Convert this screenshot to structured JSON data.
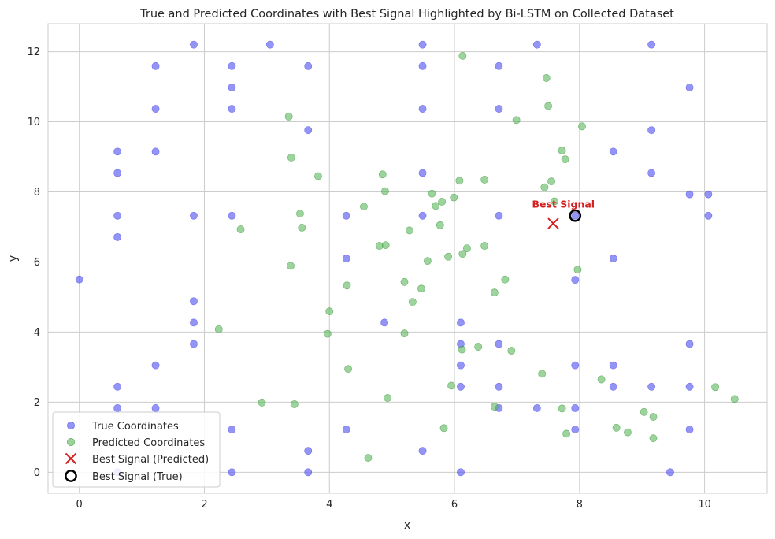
{
  "chart_data": {
    "type": "scatter",
    "title": "True and Predicted Coordinates with Best Signal Highlighted by Bi-LSTM on Collected Dataset",
    "xlabel": "x",
    "ylabel": "y",
    "xlim": [
      -0.5,
      11.0
    ],
    "ylim": [
      -0.6,
      12.8
    ],
    "xticks": [
      0,
      2,
      4,
      6,
      8,
      10
    ],
    "yticks": [
      0,
      2,
      4,
      6,
      8,
      10,
      12
    ],
    "grid": true,
    "legend_position": "lower-left",
    "colors": {
      "true": "#5b5bf0",
      "predicted": "#5cb85c",
      "best_marker": "#d62020",
      "best_true_ring": "#000000"
    },
    "series": [
      {
        "name": "True Coordinates",
        "marker": "circle",
        "points": [
          [
            0.0,
            5.5
          ],
          [
            0.61,
            9.15
          ],
          [
            0.61,
            8.54
          ],
          [
            0.61,
            7.32
          ],
          [
            0.61,
            6.71
          ],
          [
            0.61,
            2.44
          ],
          [
            0.61,
            1.83
          ],
          [
            0.61,
            0.0
          ],
          [
            1.22,
            11.59
          ],
          [
            1.22,
            10.37
          ],
          [
            1.22,
            9.15
          ],
          [
            1.22,
            3.05
          ],
          [
            1.22,
            1.83
          ],
          [
            1.83,
            12.2
          ],
          [
            1.83,
            7.32
          ],
          [
            1.83,
            4.88
          ],
          [
            1.83,
            4.27
          ],
          [
            1.83,
            3.66
          ],
          [
            2.44,
            11.59
          ],
          [
            2.44,
            10.98
          ],
          [
            2.44,
            10.37
          ],
          [
            2.44,
            7.32
          ],
          [
            2.44,
            1.22
          ],
          [
            2.44,
            0.0
          ],
          [
            3.05,
            12.2
          ],
          [
            3.66,
            11.59
          ],
          [
            3.66,
            9.76
          ],
          [
            3.66,
            0.61
          ],
          [
            3.66,
            0.0
          ],
          [
            4.27,
            7.32
          ],
          [
            4.27,
            6.1
          ],
          [
            4.27,
            1.22
          ],
          [
            4.88,
            4.27
          ],
          [
            5.49,
            12.2
          ],
          [
            5.49,
            11.59
          ],
          [
            5.49,
            10.37
          ],
          [
            5.49,
            8.54
          ],
          [
            5.49,
            7.32
          ],
          [
            5.49,
            0.61
          ],
          [
            6.1,
            4.27
          ],
          [
            6.1,
            3.66
          ],
          [
            6.1,
            3.05
          ],
          [
            6.1,
            2.44
          ],
          [
            6.1,
            0.0
          ],
          [
            6.71,
            11.59
          ],
          [
            6.71,
            10.37
          ],
          [
            6.71,
            7.32
          ],
          [
            6.71,
            3.66
          ],
          [
            6.71,
            2.44
          ],
          [
            6.71,
            1.83
          ],
          [
            7.32,
            12.2
          ],
          [
            7.32,
            1.83
          ],
          [
            7.93,
            7.32
          ],
          [
            7.93,
            5.49
          ],
          [
            7.93,
            3.05
          ],
          [
            7.93,
            1.83
          ],
          [
            7.93,
            1.22
          ],
          [
            8.54,
            9.15
          ],
          [
            8.54,
            6.1
          ],
          [
            8.54,
            3.05
          ],
          [
            8.54,
            2.44
          ],
          [
            9.15,
            12.2
          ],
          [
            9.15,
            9.76
          ],
          [
            9.15,
            8.54
          ],
          [
            9.15,
            2.44
          ],
          [
            9.45,
            0.0
          ],
          [
            9.76,
            10.98
          ],
          [
            9.76,
            7.93
          ],
          [
            9.76,
            3.66
          ],
          [
            9.76,
            2.44
          ],
          [
            9.76,
            1.22
          ],
          [
            10.06,
            7.93
          ],
          [
            10.06,
            7.32
          ]
        ]
      },
      {
        "name": "Predicted Coordinates",
        "marker": "circle",
        "points": [
          [
            6.13,
            11.88
          ],
          [
            7.47,
            11.25
          ],
          [
            7.5,
            10.45
          ],
          [
            6.99,
            10.05
          ],
          [
            8.04,
            9.87
          ],
          [
            3.35,
            10.15
          ],
          [
            3.39,
            8.98
          ],
          [
            3.82,
            8.45
          ],
          [
            4.85,
            8.5
          ],
          [
            4.89,
            8.02
          ],
          [
            7.72,
            9.18
          ],
          [
            7.77,
            8.93
          ],
          [
            7.55,
            8.3
          ],
          [
            7.44,
            8.13
          ],
          [
            7.6,
            7.73
          ],
          [
            6.48,
            8.35
          ],
          [
            6.08,
            8.32
          ],
          [
            5.99,
            7.84
          ],
          [
            5.8,
            7.72
          ],
          [
            5.64,
            7.95
          ],
          [
            5.7,
            7.6
          ],
          [
            4.55,
            7.58
          ],
          [
            3.53,
            7.38
          ],
          [
            3.56,
            6.98
          ],
          [
            2.58,
            6.93
          ],
          [
            5.77,
            7.05
          ],
          [
            5.28,
            6.9
          ],
          [
            4.8,
            6.46
          ],
          [
            4.9,
            6.48
          ],
          [
            6.2,
            6.39
          ],
          [
            6.13,
            6.23
          ],
          [
            5.9,
            6.15
          ],
          [
            6.48,
            6.46
          ],
          [
            5.57,
            6.03
          ],
          [
            3.38,
            5.89
          ],
          [
            7.97,
            5.78
          ],
          [
            4.28,
            5.33
          ],
          [
            5.2,
            5.43
          ],
          [
            5.47,
            5.24
          ],
          [
            6.81,
            5.5
          ],
          [
            6.64,
            5.13
          ],
          [
            5.33,
            4.86
          ],
          [
            4.0,
            4.59
          ],
          [
            2.23,
            4.08
          ],
          [
            3.97,
            3.95
          ],
          [
            5.2,
            3.96
          ],
          [
            6.12,
            3.5
          ],
          [
            6.38,
            3.58
          ],
          [
            6.91,
            3.47
          ],
          [
            4.3,
            2.95
          ],
          [
            7.4,
            2.81
          ],
          [
            8.35,
            2.65
          ],
          [
            5.95,
            2.47
          ],
          [
            10.17,
            2.43
          ],
          [
            10.48,
            2.09
          ],
          [
            2.92,
            1.99
          ],
          [
            3.44,
            1.94
          ],
          [
            4.93,
            2.12
          ],
          [
            6.64,
            1.87
          ],
          [
            7.72,
            1.82
          ],
          [
            9.03,
            1.72
          ],
          [
            9.18,
            1.58
          ],
          [
            5.83,
            1.26
          ],
          [
            8.59,
            1.27
          ],
          [
            8.77,
            1.14
          ],
          [
            7.79,
            1.1
          ],
          [
            9.18,
            0.97
          ],
          [
            4.62,
            0.41
          ]
        ]
      }
    ],
    "best_signal": {
      "predicted": [
        7.58,
        7.1
      ],
      "true": [
        7.93,
        7.32
      ],
      "label": "Best Signal",
      "predicted_legend": "Best Signal (Predicted)",
      "true_legend": "Best Signal (True)"
    }
  }
}
